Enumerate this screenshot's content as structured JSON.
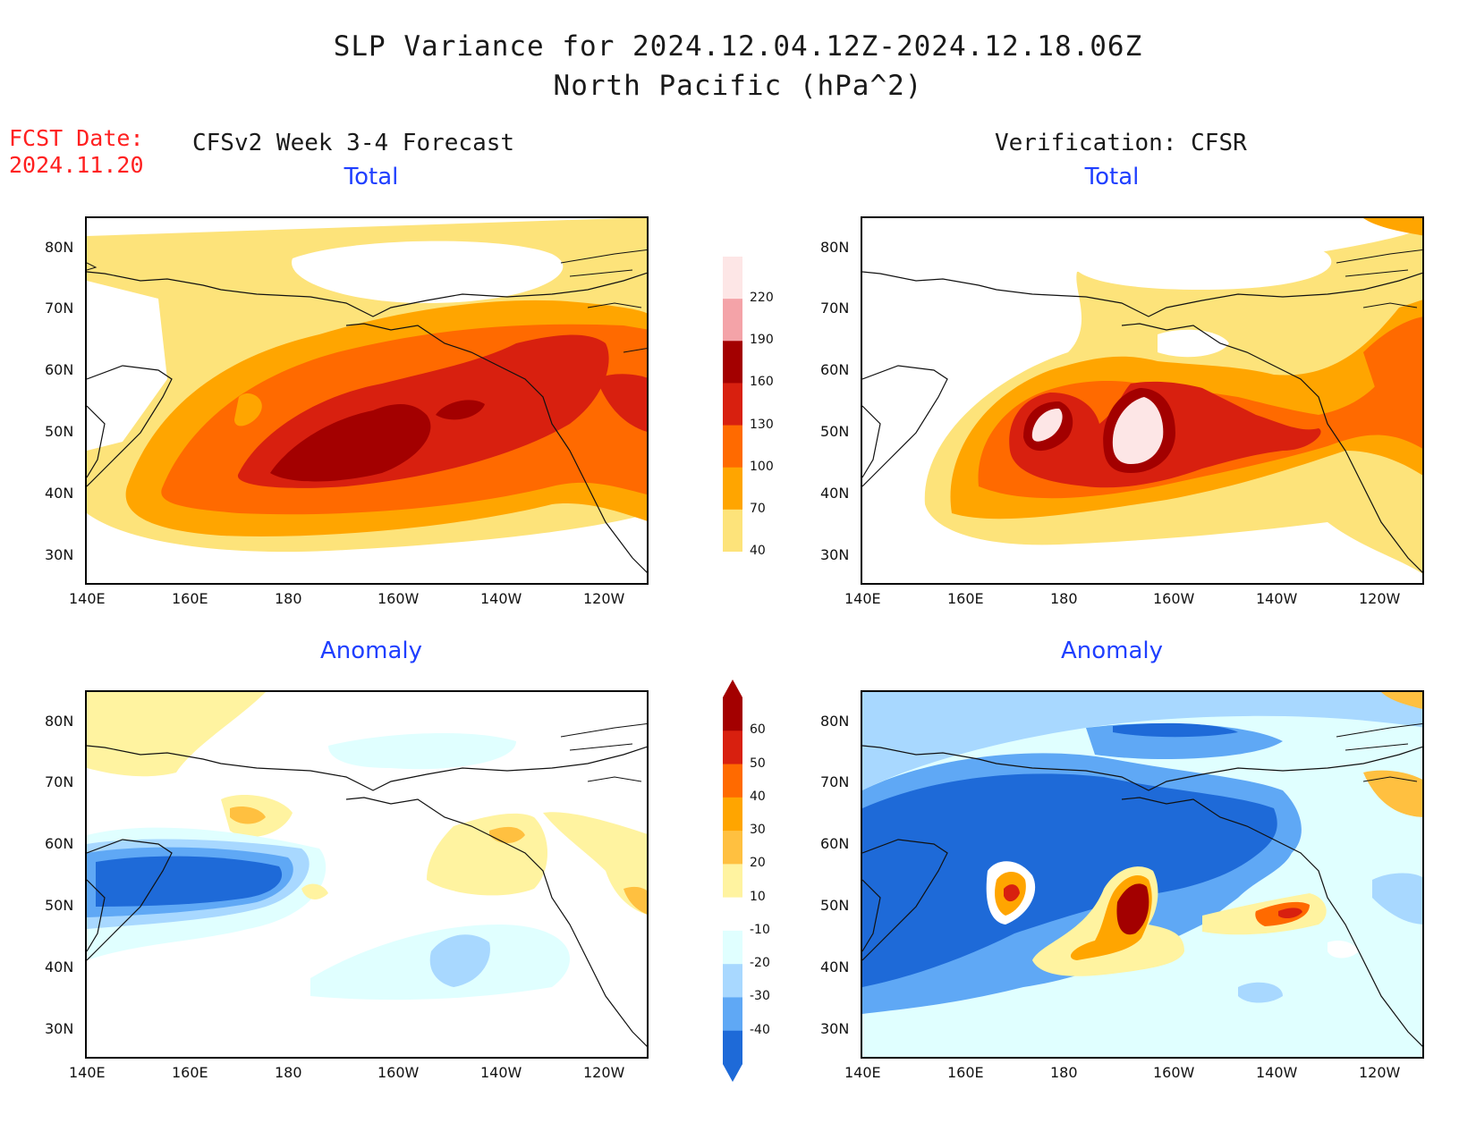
{
  "header": {
    "title": "SLP Variance for 2024.12.04.12Z-2024.12.18.06Z",
    "subtitle": "North Pacific (hPa^2)",
    "fcst_line1": "FCST Date:",
    "fcst_line2": "2024.11.20",
    "left_column": "CFSv2 Week 3-4 Forecast",
    "right_column": "Verification: CFSR"
  },
  "panels": {
    "tl": "Total",
    "tr": "Total",
    "bl": "Anomaly",
    "br": "Anomaly"
  },
  "axes": {
    "y_ticks": [
      "80N",
      "70N",
      "60N",
      "50N",
      "40N",
      "30N"
    ],
    "x_ticks": [
      "140E",
      "160E",
      "180",
      "160W",
      "140W",
      "120W"
    ]
  },
  "colorbar_total": {
    "levels": [
      "220",
      "190",
      "160",
      "130",
      "100",
      "70",
      "40"
    ],
    "colors": [
      "#fde6e6",
      "#f4a3a8",
      "#a30000",
      "#d8200f",
      "#ff6a00",
      "#ffa500",
      "#fde37a"
    ]
  },
  "colorbar_anomaly": {
    "levels": [
      "60",
      "50",
      "40",
      "30",
      "20",
      "10",
      "-10",
      "-20",
      "-30",
      "-40"
    ],
    "colors": [
      "#a30000",
      "#d8200f",
      "#ff6a00",
      "#ffa500",
      "#ffc040",
      "#fff3a0",
      "#ffffff",
      "#e0ffff",
      "#a8d8ff",
      "#5fa8f5",
      "#1e6ad8"
    ]
  },
  "chart_data": {
    "type": "heatmap",
    "title": "SLP Variance for 2024.12.04.12Z-2024.12.18.06Z",
    "subtitle": "North Pacific (hPa^2)",
    "x_range": [
      "140E",
      "110W"
    ],
    "y_range": [
      "25N",
      "85N"
    ],
    "total_levels": [
      40,
      70,
      100,
      130,
      160,
      190,
      220
    ],
    "anomaly_levels": [
      -40,
      -30,
      -20,
      -10,
      10,
      20,
      30,
      40,
      50,
      60
    ]
  }
}
